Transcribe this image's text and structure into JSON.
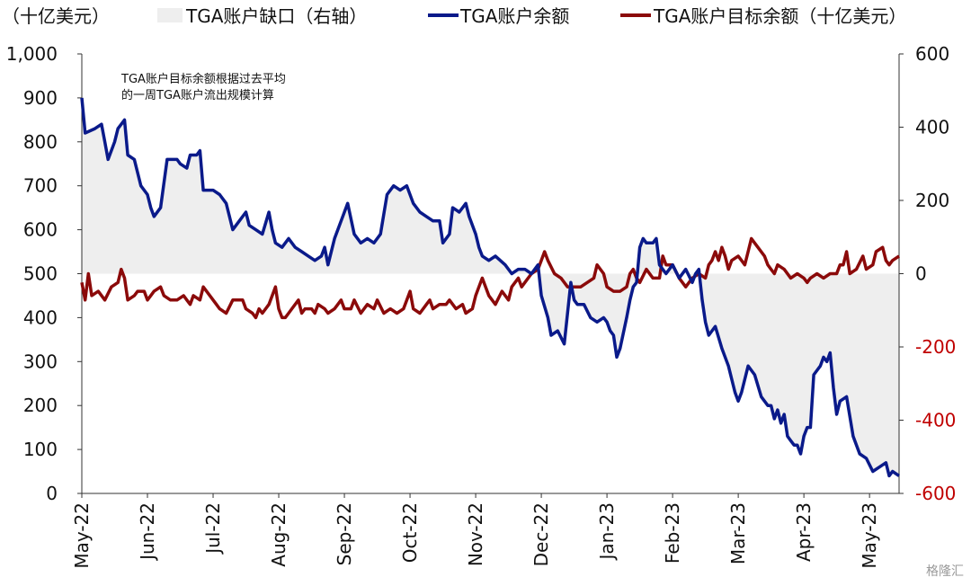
{
  "chart_data": {
    "type": "line",
    "left_axis_unit": "（十亿美元）",
    "legend": [
      {
        "key": "gap",
        "label": "TGA账户缺口（右轴）",
        "style": "area",
        "color": "#eeeeee"
      },
      {
        "key": "balance",
        "label": "TGA账户余额",
        "style": "line",
        "color": "#0a1a8a"
      },
      {
        "key": "target",
        "label": "TGA账户目标余额（十亿美元）",
        "style": "line",
        "color": "#8b0a0a"
      }
    ],
    "annotation": [
      "TGA账户目标余额根据过去平均",
      "的一周TGA账户流出规模计算"
    ],
    "x_labels": [
      "May-22",
      "Jun-22",
      "Jul-22",
      "Aug-22",
      "Sep-22",
      "Oct-22",
      "Nov-22",
      "Dec-22",
      "Jan-23",
      "Feb-23",
      "Mar-23",
      "Apr-23",
      "May-23"
    ],
    "x_range": [
      0,
      12.45
    ],
    "y_left": {
      "min": 0,
      "max": 1000,
      "ticks": [
        "0",
        "100",
        "200",
        "300",
        "400",
        "500",
        "600",
        "700",
        "800",
        "900",
        "1,000"
      ]
    },
    "y_right": {
      "min": -600,
      "max": 600,
      "ticks": [
        {
          "v": -600,
          "label": "-600",
          "red": true
        },
        {
          "v": -400,
          "label": "-400",
          "red": true
        },
        {
          "v": -200,
          "label": "-200",
          "red": true
        },
        {
          "v": 0,
          "label": "0",
          "red": false
        },
        {
          "v": 200,
          "label": "200",
          "red": false
        },
        {
          "v": 400,
          "label": "400",
          "red": false
        },
        {
          "v": 600,
          "label": "600",
          "red": false
        }
      ]
    },
    "series_balance": {
      "name": "TGA账户余额",
      "points": [
        [
          0,
          900
        ],
        [
          0.05,
          820
        ],
        [
          0.2,
          830
        ],
        [
          0.3,
          840
        ],
        [
          0.35,
          800
        ],
        [
          0.4,
          760
        ],
        [
          0.5,
          800
        ],
        [
          0.55,
          830
        ],
        [
          0.65,
          850
        ],
        [
          0.7,
          770
        ],
        [
          0.8,
          760
        ],
        [
          0.9,
          700
        ],
        [
          1.0,
          680
        ],
        [
          1.05,
          650
        ],
        [
          1.1,
          630
        ],
        [
          1.2,
          650
        ],
        [
          1.3,
          760
        ],
        [
          1.35,
          760
        ],
        [
          1.45,
          760
        ],
        [
          1.5,
          750
        ],
        [
          1.6,
          740
        ],
        [
          1.65,
          770
        ],
        [
          1.75,
          770
        ],
        [
          1.8,
          780
        ],
        [
          1.85,
          690
        ],
        [
          2.0,
          690
        ],
        [
          2.1,
          680
        ],
        [
          2.2,
          660
        ],
        [
          2.3,
          600
        ],
        [
          2.4,
          620
        ],
        [
          2.5,
          640
        ],
        [
          2.55,
          610
        ],
        [
          2.65,
          600
        ],
        [
          2.75,
          590
        ],
        [
          2.85,
          640
        ],
        [
          2.9,
          600
        ],
        [
          2.95,
          570
        ],
        [
          3.05,
          560
        ],
        [
          3.15,
          580
        ],
        [
          3.25,
          560
        ],
        [
          3.35,
          550
        ],
        [
          3.45,
          540
        ],
        [
          3.55,
          530
        ],
        [
          3.65,
          540
        ],
        [
          3.7,
          560
        ],
        [
          3.75,
          520
        ],
        [
          3.85,
          580
        ],
        [
          3.95,
          620
        ],
        [
          4.05,
          660
        ],
        [
          4.15,
          590
        ],
        [
          4.25,
          570
        ],
        [
          4.35,
          580
        ],
        [
          4.45,
          570
        ],
        [
          4.55,
          590
        ],
        [
          4.65,
          680
        ],
        [
          4.75,
          700
        ],
        [
          4.85,
          690
        ],
        [
          4.95,
          700
        ],
        [
          5.05,
          660
        ],
        [
          5.15,
          640
        ],
        [
          5.25,
          630
        ],
        [
          5.35,
          620
        ],
        [
          5.45,
          620
        ],
        [
          5.5,
          570
        ],
        [
          5.6,
          590
        ],
        [
          5.65,
          650
        ],
        [
          5.75,
          640
        ],
        [
          5.85,
          660
        ],
        [
          5.9,
          630
        ],
        [
          6.0,
          590
        ],
        [
          6.05,
          560
        ],
        [
          6.1,
          540
        ],
        [
          6.2,
          530
        ],
        [
          6.3,
          540
        ],
        [
          6.45,
          520
        ],
        [
          6.55,
          500
        ],
        [
          6.65,
          510
        ],
        [
          6.75,
          510
        ],
        [
          6.85,
          500
        ],
        [
          6.95,
          520
        ],
        [
          7.0,
          450
        ],
        [
          7.1,
          400
        ],
        [
          7.15,
          360
        ],
        [
          7.25,
          370
        ],
        [
          7.35,
          340
        ],
        [
          7.45,
          480
        ],
        [
          7.5,
          440
        ],
        [
          7.55,
          430
        ],
        [
          7.65,
          430
        ],
        [
          7.75,
          400
        ],
        [
          7.85,
          390
        ],
        [
          7.95,
          400
        ],
        [
          8.0,
          390
        ],
        [
          8.05,
          370
        ],
        [
          8.1,
          360
        ],
        [
          8.15,
          310
        ],
        [
          8.2,
          330
        ],
        [
          8.3,
          400
        ],
        [
          8.35,
          440
        ],
        [
          8.4,
          470
        ],
        [
          8.45,
          480
        ],
        [
          8.5,
          560
        ],
        [
          8.55,
          580
        ],
        [
          8.6,
          570
        ],
        [
          8.7,
          570
        ],
        [
          8.75,
          580
        ],
        [
          8.8,
          520
        ],
        [
          8.9,
          500
        ],
        [
          9.0,
          520
        ],
        [
          9.1,
          490
        ],
        [
          9.2,
          510
        ],
        [
          9.3,
          480
        ],
        [
          9.35,
          500
        ],
        [
          9.4,
          510
        ],
        [
          9.45,
          440
        ],
        [
          9.5,
          390
        ],
        [
          9.55,
          360
        ],
        [
          9.6,
          370
        ],
        [
          9.65,
          380
        ],
        [
          9.75,
          330
        ],
        [
          9.85,
          290
        ],
        [
          9.95,
          230
        ],
        [
          10.0,
          210
        ],
        [
          10.05,
          230
        ],
        [
          10.15,
          290
        ],
        [
          10.25,
          270
        ],
        [
          10.35,
          220
        ],
        [
          10.45,
          200
        ],
        [
          10.5,
          200
        ],
        [
          10.55,
          170
        ],
        [
          10.6,
          190
        ],
        [
          10.65,
          160
        ],
        [
          10.7,
          180
        ],
        [
          10.75,
          130
        ],
        [
          10.8,
          120
        ],
        [
          10.85,
          110
        ],
        [
          10.9,
          110
        ],
        [
          10.95,
          90
        ],
        [
          11.0,
          130
        ],
        [
          11.05,
          150
        ],
        [
          11.1,
          150
        ],
        [
          11.15,
          270
        ],
        [
          11.2,
          280
        ],
        [
          11.25,
          290
        ],
        [
          11.3,
          310
        ],
        [
          11.35,
          300
        ],
        [
          11.4,
          320
        ],
        [
          11.45,
          240
        ],
        [
          11.5,
          180
        ],
        [
          11.55,
          210
        ],
        [
          11.65,
          220
        ],
        [
          11.75,
          130
        ],
        [
          11.85,
          90
        ],
        [
          11.95,
          80
        ],
        [
          12.05,
          50
        ],
        [
          12.15,
          60
        ],
        [
          12.25,
          70
        ],
        [
          12.3,
          40
        ],
        [
          12.35,
          50
        ],
        [
          12.45,
          40
        ]
      ]
    },
    "series_target": {
      "name": "TGA账户目标余额（十亿美元）",
      "points": [
        [
          0,
          480
        ],
        [
          0.05,
          440
        ],
        [
          0.1,
          500
        ],
        [
          0.15,
          450
        ],
        [
          0.25,
          460
        ],
        [
          0.35,
          440
        ],
        [
          0.45,
          470
        ],
        [
          0.55,
          480
        ],
        [
          0.6,
          510
        ],
        [
          0.65,
          490
        ],
        [
          0.7,
          440
        ],
        [
          0.8,
          450
        ],
        [
          0.85,
          460
        ],
        [
          0.95,
          460
        ],
        [
          1.0,
          440
        ],
        [
          1.05,
          450
        ],
        [
          1.1,
          460
        ],
        [
          1.2,
          470
        ],
        [
          1.25,
          450
        ],
        [
          1.35,
          440
        ],
        [
          1.45,
          440
        ],
        [
          1.55,
          450
        ],
        [
          1.6,
          440
        ],
        [
          1.65,
          430
        ],
        [
          1.7,
          450
        ],
        [
          1.8,
          440
        ],
        [
          1.85,
          470
        ],
        [
          1.95,
          450
        ],
        [
          2.05,
          430
        ],
        [
          2.1,
          420
        ],
        [
          2.2,
          410
        ],
        [
          2.3,
          440
        ],
        [
          2.45,
          440
        ],
        [
          2.5,
          420
        ],
        [
          2.6,
          410
        ],
        [
          2.65,
          400
        ],
        [
          2.7,
          420
        ],
        [
          2.75,
          410
        ],
        [
          2.85,
          430
        ],
        [
          2.95,
          470
        ],
        [
          3.0,
          420
        ],
        [
          3.05,
          400
        ],
        [
          3.1,
          400
        ],
        [
          3.15,
          410
        ],
        [
          3.2,
          420
        ],
        [
          3.3,
          440
        ],
        [
          3.35,
          410
        ],
        [
          3.4,
          420
        ],
        [
          3.5,
          420
        ],
        [
          3.55,
          410
        ],
        [
          3.6,
          430
        ],
        [
          3.7,
          420
        ],
        [
          3.75,
          410
        ],
        [
          3.85,
          420
        ],
        [
          3.95,
          440
        ],
        [
          4.0,
          420
        ],
        [
          4.1,
          420
        ],
        [
          4.15,
          440
        ],
        [
          4.25,
          410
        ],
        [
          4.35,
          430
        ],
        [
          4.45,
          420
        ],
        [
          4.5,
          440
        ],
        [
          4.6,
          410
        ],
        [
          4.7,
          420
        ],
        [
          4.8,
          410
        ],
        [
          4.9,
          420
        ],
        [
          5.0,
          460
        ],
        [
          5.05,
          420
        ],
        [
          5.15,
          410
        ],
        [
          5.25,
          430
        ],
        [
          5.3,
          440
        ],
        [
          5.35,
          420
        ],
        [
          5.45,
          430
        ],
        [
          5.55,
          430
        ],
        [
          5.6,
          440
        ],
        [
          5.7,
          420
        ],
        [
          5.8,
          430
        ],
        [
          5.85,
          410
        ],
        [
          5.95,
          420
        ],
        [
          6.0,
          450
        ],
        [
          6.05,
          470
        ],
        [
          6.1,
          490
        ],
        [
          6.2,
          450
        ],
        [
          6.3,
          430
        ],
        [
          6.4,
          460
        ],
        [
          6.5,
          440
        ],
        [
          6.55,
          470
        ],
        [
          6.65,
          490
        ],
        [
          6.7,
          470
        ],
        [
          6.75,
          480
        ],
        [
          6.85,
          500
        ],
        [
          6.95,
          510
        ],
        [
          7.0,
          530
        ],
        [
          7.05,
          550
        ],
        [
          7.1,
          530
        ],
        [
          7.2,
          500
        ],
        [
          7.3,
          490
        ],
        [
          7.4,
          470
        ],
        [
          7.5,
          470
        ],
        [
          7.6,
          470
        ],
        [
          7.7,
          480
        ],
        [
          7.8,
          490
        ],
        [
          7.85,
          520
        ],
        [
          7.95,
          500
        ],
        [
          8.0,
          470
        ],
        [
          8.1,
          460
        ],
        [
          8.2,
          460
        ],
        [
          8.3,
          470
        ],
        [
          8.35,
          500
        ],
        [
          8.4,
          510
        ],
        [
          8.45,
          490
        ],
        [
          8.5,
          480
        ],
        [
          8.6,
          510
        ],
        [
          8.7,
          490
        ],
        [
          8.8,
          490
        ],
        [
          8.85,
          540
        ],
        [
          8.9,
          520
        ],
        [
          9.0,
          520
        ],
        [
          9.1,
          490
        ],
        [
          9.2,
          470
        ],
        [
          9.3,
          490
        ],
        [
          9.4,
          500
        ],
        [
          9.5,
          490
        ],
        [
          9.55,
          520
        ],
        [
          9.6,
          530
        ],
        [
          9.65,
          550
        ],
        [
          9.7,
          530
        ],
        [
          9.75,
          560
        ],
        [
          9.8,
          540
        ],
        [
          9.85,
          510
        ],
        [
          9.9,
          530
        ],
        [
          10.0,
          540
        ],
        [
          10.05,
          530
        ],
        [
          10.1,
          520
        ],
        [
          10.15,
          550
        ],
        [
          10.2,
          580
        ],
        [
          10.3,
          560
        ],
        [
          10.4,
          540
        ],
        [
          10.45,
          520
        ],
        [
          10.5,
          510
        ],
        [
          10.55,
          500
        ],
        [
          10.6,
          520
        ],
        [
          10.7,
          510
        ],
        [
          10.8,
          490
        ],
        [
          10.9,
          500
        ],
        [
          11.0,
          490
        ],
        [
          11.05,
          480
        ],
        [
          11.1,
          490
        ],
        [
          11.2,
          500
        ],
        [
          11.3,
          490
        ],
        [
          11.4,
          500
        ],
        [
          11.5,
          500
        ],
        [
          11.55,
          520
        ],
        [
          11.6,
          520
        ],
        [
          11.65,
          550
        ],
        [
          11.7,
          500
        ],
        [
          11.8,
          510
        ],
        [
          11.9,
          540
        ],
        [
          11.95,
          510
        ],
        [
          12.05,
          520
        ],
        [
          12.1,
          550
        ],
        [
          12.2,
          560
        ],
        [
          12.25,
          530
        ],
        [
          12.3,
          520
        ],
        [
          12.35,
          530
        ],
        [
          12.45,
          540
        ]
      ]
    }
  },
  "watermark": "格隆汇"
}
